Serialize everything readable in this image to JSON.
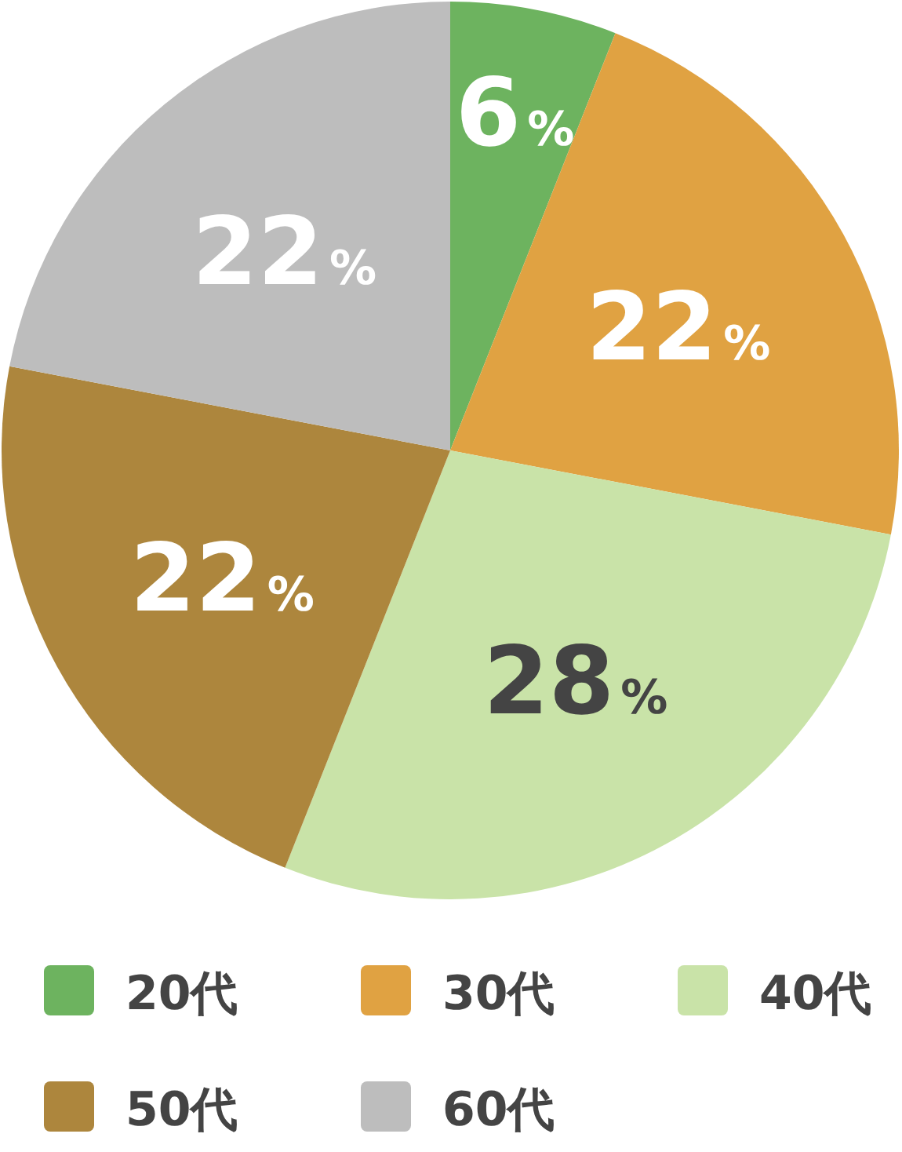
{
  "chart_data": {
    "type": "pie",
    "categories": [
      "20代",
      "30代",
      "40代",
      "50代",
      "60代"
    ],
    "values": [
      6,
      22,
      28,
      22,
      22
    ],
    "colors": [
      "#6db35f",
      "#e0a242",
      "#c9e3a8",
      "#ad863d",
      "#bdbdbd"
    ],
    "value_labels": [
      "6%",
      "22%",
      "28%",
      "22%",
      "22%"
    ],
    "legend": "bottom"
  }
}
